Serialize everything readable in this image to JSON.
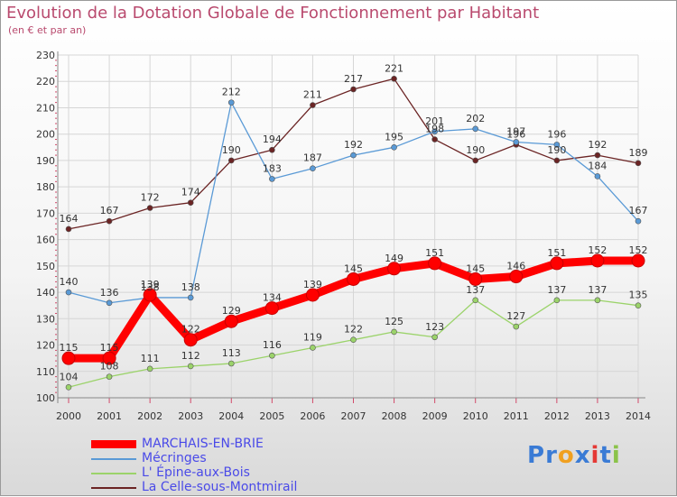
{
  "header": {
    "title": "Evolution de la Dotation Globale de Fonctionnement par Habitant",
    "subtitle": "(en € et par an)"
  },
  "chart_data": {
    "type": "line",
    "title": "Evolution de la Dotation Globale de Fonctionnement par Habitant",
    "subtitle": "(en € et par an)",
    "xlabel": "",
    "ylabel": "",
    "x": [
      "2000",
      "2001",
      "2002",
      "2003",
      "2004",
      "2005",
      "2006",
      "2007",
      "2008",
      "2009",
      "2010",
      "2011",
      "2012",
      "2013",
      "2014"
    ],
    "ylim": [
      100,
      230
    ],
    "yticks": [
      "100",
      "110",
      "120",
      "130",
      "140",
      "150",
      "160",
      "170",
      "180",
      "190",
      "200",
      "210",
      "220",
      "230"
    ],
    "grid": true,
    "series": [
      {
        "name": "MARCHAIS-EN-BRIE",
        "color": "#ff0000",
        "values": [
          115,
          115,
          139,
          122,
          129,
          134,
          139,
          145,
          149,
          151,
          145,
          146,
          151,
          152,
          152
        ]
      },
      {
        "name": "Mécringes",
        "color": "#5a9ad6",
        "values": [
          140,
          136,
          138,
          138,
          212,
          183,
          187,
          192,
          195,
          201,
          202,
          197,
          196,
          184,
          167
        ]
      },
      {
        "name": "L' Épine-aux-Bois",
        "color": "#9bd36a",
        "values": [
          104,
          108,
          111,
          112,
          113,
          116,
          119,
          122,
          125,
          123,
          137,
          127,
          137,
          137,
          135
        ]
      },
      {
        "name": "La Celle-sous-Montmirail",
        "color": "#6b2424",
        "values": [
          164,
          167,
          172,
          174,
          190,
          194,
          211,
          217,
          221,
          198,
          190,
          196,
          190,
          192,
          189
        ]
      }
    ],
    "legend_position": "bottom-left"
  },
  "logo": {
    "letters": [
      "P",
      "r",
      "o",
      "x",
      "i",
      "t",
      "i"
    ],
    "colors": [
      "#3a7bd5",
      "#3a7bd5",
      "#f0a020",
      "#3a7bd5",
      "#e53935",
      "#3a7bd5",
      "#8bc34a"
    ]
  }
}
